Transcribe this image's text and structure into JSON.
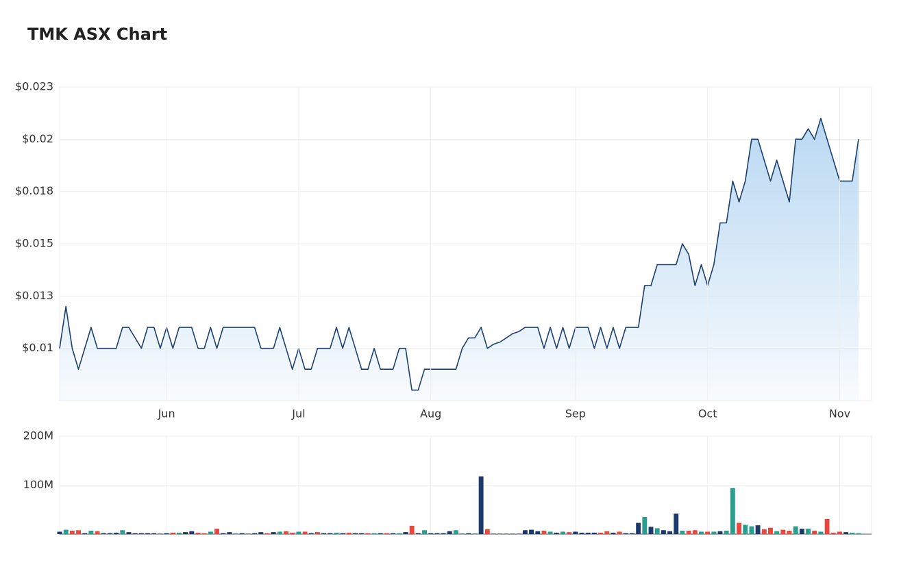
{
  "chart_data": [
    {
      "type": "line",
      "title": "TMK ASX Chart",
      "color": "#1c3f72",
      "fill": "#b9d8f2",
      "categories": [
        null,
        null,
        null,
        null,
        null,
        null,
        null,
        null,
        null,
        null,
        null,
        null,
        null,
        null,
        null,
        null,
        null,
        "Jun",
        null,
        null,
        null,
        null,
        null,
        null,
        null,
        null,
        null,
        null,
        null,
        null,
        null,
        null,
        null,
        null,
        null,
        null,
        null,
        null,
        "Jul",
        null,
        null,
        null,
        null,
        null,
        null,
        null,
        null,
        null,
        null,
        null,
        null,
        null,
        null,
        null,
        null,
        null,
        null,
        null,
        null,
        "Aug",
        null,
        null,
        null,
        null,
        null,
        null,
        null,
        null,
        null,
        null,
        null,
        null,
        null,
        null,
        null,
        null,
        null,
        null,
        null,
        null,
        null,
        null,
        "Sep",
        null,
        null,
        null,
        null,
        null,
        null,
        null,
        null,
        null,
        null,
        null,
        null,
        null,
        null,
        null,
        null,
        null,
        null,
        null,
        null,
        "Oct",
        null,
        null,
        null,
        null,
        null,
        null,
        null,
        null,
        null,
        null,
        null,
        null,
        null,
        null,
        null,
        null,
        null,
        null,
        null,
        null,
        "Nov",
        null,
        null,
        null
      ],
      "values": [
        0.01,
        0.012,
        0.01,
        0.009,
        0.01,
        0.011,
        0.01,
        0.01,
        0.01,
        0.01,
        0.011,
        0.011,
        0.0105,
        0.01,
        0.011,
        0.011,
        0.01,
        0.011,
        0.01,
        0.011,
        0.011,
        0.011,
        0.01,
        0.01,
        0.011,
        0.01,
        0.011,
        0.011,
        0.011,
        0.011,
        0.011,
        0.011,
        0.01,
        0.01,
        0.01,
        0.011,
        0.01,
        0.009,
        0.01,
        0.009,
        0.009,
        0.01,
        0.01,
        0.01,
        0.011,
        0.01,
        0.011,
        0.01,
        0.009,
        0.009,
        0.01,
        0.009,
        0.009,
        0.009,
        0.01,
        0.01,
        0.008,
        0.008,
        0.009,
        0.009,
        0.009,
        0.009,
        0.009,
        0.009,
        0.01,
        0.0105,
        0.0105,
        0.011,
        0.01,
        0.0102,
        0.0103,
        0.0105,
        0.0107,
        0.0108,
        0.011,
        0.011,
        0.011,
        0.01,
        0.011,
        0.01,
        0.011,
        0.01,
        0.011,
        0.011,
        0.011,
        0.01,
        0.011,
        0.01,
        0.011,
        0.01,
        0.011,
        0.011,
        0.011,
        0.013,
        0.013,
        0.014,
        0.014,
        0.014,
        0.014,
        0.015,
        0.0145,
        0.013,
        0.014,
        0.013,
        0.014,
        0.016,
        0.016,
        0.018,
        0.017,
        0.018,
        0.02,
        0.02,
        0.019,
        0.018,
        0.019,
        0.018,
        0.017,
        0.02,
        0.02,
        0.0205,
        0.02,
        0.021,
        0.02,
        0.019,
        0.018,
        0.018,
        0.018,
        0.02
      ],
      "ylim": [
        0.0075,
        0.0225
      ],
      "yticks": [
        {
          "value": 0.0225,
          "label": "$0.023"
        },
        {
          "value": 0.02,
          "label": "$0.02"
        },
        {
          "value": 0.0175,
          "label": "$0.018"
        },
        {
          "value": 0.015,
          "label": "$0.015"
        },
        {
          "value": 0.0125,
          "label": "$0.013"
        },
        {
          "value": 0.01,
          "label": "$0.01"
        }
      ],
      "grid": true
    },
    {
      "type": "bar",
      "values": [
        5000000,
        9000000,
        7000000,
        8000000,
        2000000,
        7000000,
        6000000,
        2000000,
        2000000,
        3000000,
        8000000,
        4000000,
        2000000,
        2000000,
        2000000,
        2000000,
        1000000,
        2000000,
        3000000,
        3000000,
        4000000,
        6000000,
        3000000,
        2000000,
        5000000,
        11000000,
        2000000,
        4000000,
        1000000,
        2000000,
        1000000,
        2000000,
        4000000,
        2000000,
        4000000,
        5000000,
        6000000,
        3000000,
        5000000,
        5000000,
        2000000,
        4000000,
        2000000,
        2000000,
        3000000,
        2000000,
        3000000,
        2000000,
        2000000,
        2000000,
        2000000,
        2000000,
        2000000,
        2000000,
        2000000,
        4000000,
        17000000,
        2000000,
        8000000,
        2000000,
        2000000,
        2000000,
        6000000,
        8000000,
        1000000,
        2000000,
        1000000,
        118000000,
        10000000,
        1000000,
        1000000,
        1000000,
        1000000,
        1000000,
        8000000,
        9000000,
        6000000,
        7000000,
        5000000,
        3000000,
        5000000,
        4000000,
        5000000,
        3000000,
        3000000,
        3000000,
        3000000,
        6000000,
        3000000,
        5000000,
        2000000,
        2000000,
        23000000,
        35000000,
        15000000,
        12000000,
        8000000,
        6000000,
        42000000,
        7000000,
        7000000,
        8000000,
        5000000,
        5000000,
        5000000,
        6000000,
        7000000,
        94000000,
        23000000,
        19000000,
        16000000,
        18000000,
        10000000,
        13000000,
        6000000,
        9000000,
        7000000,
        16000000,
        11000000,
        11000000,
        7000000,
        5000000,
        31000000,
        3000000,
        5000000,
        4000000,
        3000000,
        2000000
      ],
      "colors": [
        "#1b3a6b",
        "#2a9d8f",
        "#e8473f",
        "#e8473f",
        "#1b3a6b",
        "#2a9d8f",
        "#e8473f",
        "#1b3a6b",
        "#1b3a6b",
        "#1b3a6b",
        "#2a9d8f",
        "#1b3a6b",
        "#1b3a6b",
        "#1b3a6b",
        "#1b3a6b",
        "#1b3a6b",
        "#1b3a6b",
        "#1b3a6b",
        "#e8473f",
        "#2a9d8f",
        "#1b3a6b",
        "#1b3a6b",
        "#e8473f",
        "#e8473f",
        "#2a9d8f",
        "#e8473f",
        "#1b3a6b",
        "#1b3a6b",
        "#1b3a6b",
        "#1b3a6b",
        "#1b3a6b",
        "#1b3a6b",
        "#1b3a6b",
        "#e8473f",
        "#1b3a6b",
        "#2a9d8f",
        "#e8473f",
        "#e8473f",
        "#2a9d8f",
        "#e8473f",
        "#1b3a6b",
        "#e8473f",
        "#1b3a6b",
        "#1b3a6b",
        "#2a9d8f",
        "#1b3a6b",
        "#e8473f",
        "#1b3a6b",
        "#1b3a6b",
        "#e8473f",
        "#2a9d8f",
        "#1b3a6b",
        "#e8473f",
        "#1b3a6b",
        "#2a9d8f",
        "#1b3a6b",
        "#e8473f",
        "#1b3a6b",
        "#2a9d8f",
        "#1b3a6b",
        "#1b3a6b",
        "#1b3a6b",
        "#1b3a6b",
        "#2a9d8f",
        "#1b3a6b",
        "#1b3a6b",
        "#1b3a6b",
        "#1b3a6b",
        "#e8473f",
        "#1b3a6b",
        "#1b3a6b",
        "#1b3a6b",
        "#1b3a6b",
        "#1b3a6b",
        "#1b3a6b",
        "#1b3a6b",
        "#1b3a6b",
        "#e8473f",
        "#2a9d8f",
        "#1b3a6b",
        "#2a9d8f",
        "#e8473f",
        "#1b3a6b",
        "#1b3a6b",
        "#1b3a6b",
        "#1b3a6b",
        "#e8473f",
        "#e8473f",
        "#1b3a6b",
        "#e8473f",
        "#1b3a6b",
        "#1b3a6b",
        "#1b3a6b",
        "#2a9d8f",
        "#1b3a6b",
        "#2a9d8f",
        "#1b3a6b",
        "#1b3a6b",
        "#1b3a6b",
        "#2a9d8f",
        "#e8473f",
        "#e8473f",
        "#2a9d8f",
        "#e8473f",
        "#2a9d8f",
        "#1b3a6b",
        "#2a9d8f",
        "#2a9d8f",
        "#e8473f",
        "#2a9d8f",
        "#2a9d8f",
        "#1b3a6b",
        "#e8473f",
        "#e8473f",
        "#2a9d8f",
        "#e8473f",
        "#e8473f",
        "#2a9d8f",
        "#1b3a6b",
        "#2a9d8f",
        "#e8473f",
        "#2a9d8f",
        "#e8473f",
        "#e8473f",
        "#e8473f",
        "#1b3a6b",
        "#2a9d8f",
        "#2a9d8f"
      ],
      "ylim": [
        0,
        200000000
      ],
      "yticks": [
        {
          "value": 200000000,
          "label": "200M"
        },
        {
          "value": 100000000,
          "label": "100M"
        }
      ],
      "grid": true
    }
  ]
}
